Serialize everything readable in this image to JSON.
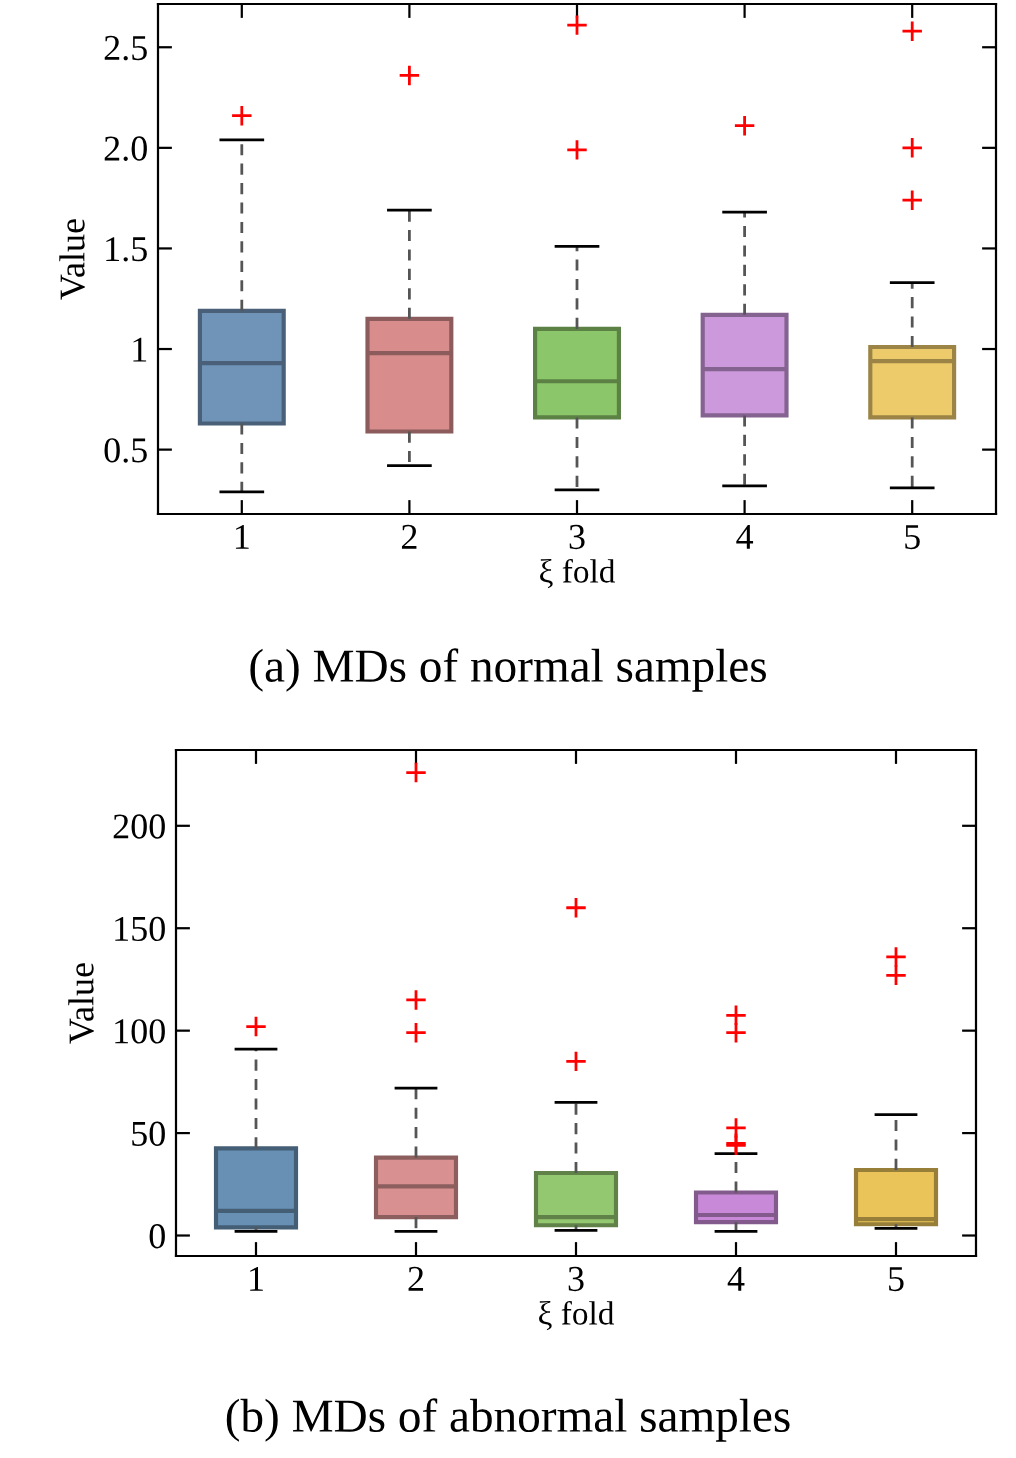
{
  "chart_data": [
    {
      "type": "box",
      "xlabel": "ξ fold",
      "ylabel": "Value",
      "annotations": [
        "(a) MDs of normal samples"
      ],
      "categories": [
        "1",
        "2",
        "3",
        "4",
        "5"
      ],
      "colors": [
        "#7094b8",
        "#d88c8c",
        "#8cc66a",
        "#cc99dd",
        "#eecb6a"
      ],
      "boxes": [
        {
          "low": 0.29,
          "q1": 0.63,
          "median": 0.93,
          "q3": 1.19,
          "high": 2.04,
          "outliers": [
            2.16
          ]
        },
        {
          "low": 0.42,
          "q1": 0.59,
          "median": 0.98,
          "q3": 1.15,
          "high": 1.69,
          "outliers": [
            2.36
          ]
        },
        {
          "low": 0.3,
          "q1": 0.66,
          "median": 0.84,
          "q3": 1.1,
          "high": 1.51,
          "outliers": [
            2.61,
            1.99
          ]
        },
        {
          "low": 0.32,
          "q1": 0.67,
          "median": 0.9,
          "q3": 1.17,
          "high": 1.68,
          "outliers": [
            2.11
          ]
        },
        {
          "low": 0.31,
          "q1": 0.66,
          "median": 0.94,
          "q3": 1.01,
          "high": 1.33,
          "outliers": [
            2.58,
            2.0,
            1.74
          ]
        }
      ],
      "ylim": [
        0.18,
        2.715
      ],
      "yticks": [
        0.5,
        1,
        1.5,
        {
          "value": 2,
          "label": "2.0"
        },
        2.5
      ],
      "grid": false,
      "marker": "cross"
    },
    {
      "type": "box",
      "xlabel": "ξ fold",
      "ylabel": "Value",
      "annotations": [
        "(b) MDs of abnormal samples"
      ],
      "categories": [
        "1",
        "2",
        "3",
        "4",
        "5"
      ],
      "colors": [
        "#6890b4",
        "#d89090",
        "#94c870",
        "#c88ad8",
        "#eac458"
      ],
      "boxes": [
        {
          "low": 2,
          "q1": 4,
          "median": 12,
          "q3": 42.5,
          "high": 91,
          "outliers": [
            102
          ]
        },
        {
          "low": 2,
          "q1": 9,
          "median": 24,
          "q3": 38,
          "high": 72,
          "outliers": [
            226,
            115,
            99
          ]
        },
        {
          "low": 2.5,
          "q1": 5,
          "median": 9,
          "q3": 30.5,
          "high": 65,
          "outliers": [
            160,
            85
          ]
        },
        {
          "low": 2,
          "q1": 6.5,
          "median": 10,
          "q3": 21,
          "high": 40,
          "outliers": [
            107.5,
            99,
            52.5,
            45,
            44
          ]
        },
        {
          "low": 3.5,
          "q1": 5.5,
          "median": 8,
          "q3": 32,
          "high": 59,
          "outliers": [
            136,
            127
          ]
        }
      ],
      "ylim": [
        -10,
        237
      ],
      "yticks": [
        0,
        50,
        100,
        150,
        200
      ],
      "grid": false,
      "marker": "cross"
    }
  ]
}
